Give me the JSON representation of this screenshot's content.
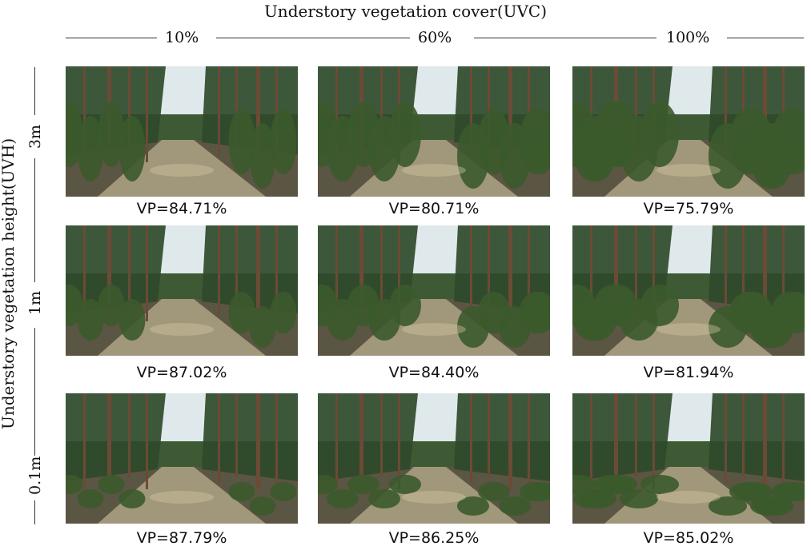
{
  "x_axis": {
    "title": "Understory vegetation cover(UVC)",
    "levels": [
      "10%",
      "60%",
      "100%"
    ]
  },
  "y_axis": {
    "title": "Understory vegetation height(UVH)",
    "levels": [
      "3m",
      "1m",
      "0.1m"
    ]
  },
  "panels": [
    {
      "vp": "VP=84.71%",
      "uvh": "3m",
      "uvc": "10%"
    },
    {
      "vp": "VP=80.71%",
      "uvh": "3m",
      "uvc": "60%"
    },
    {
      "vp": "VP=75.79%",
      "uvh": "3m",
      "uvc": "100%"
    },
    {
      "vp": "VP=87.02%",
      "uvh": "1m",
      "uvc": "10%"
    },
    {
      "vp": "VP=84.40%",
      "uvh": "1m",
      "uvc": "60%"
    },
    {
      "vp": "VP=81.94%",
      "uvh": "1m",
      "uvc": "100%"
    },
    {
      "vp": "VP=87.79%",
      "uvh": "0.1m",
      "uvc": "10%"
    },
    {
      "vp": "VP=86.25%",
      "uvh": "0.1m",
      "uvc": "60%"
    },
    {
      "vp": "VP=85.02%",
      "uvh": "0.1m",
      "uvc": "100%"
    }
  ],
  "colors": {
    "sky": "#dfe8ea",
    "canopy": "#2f4a2a",
    "ground": "#5b5543",
    "path": "#b8ad8c",
    "shrub": "#3b5a2c",
    "trunk": "#6b4a36"
  }
}
